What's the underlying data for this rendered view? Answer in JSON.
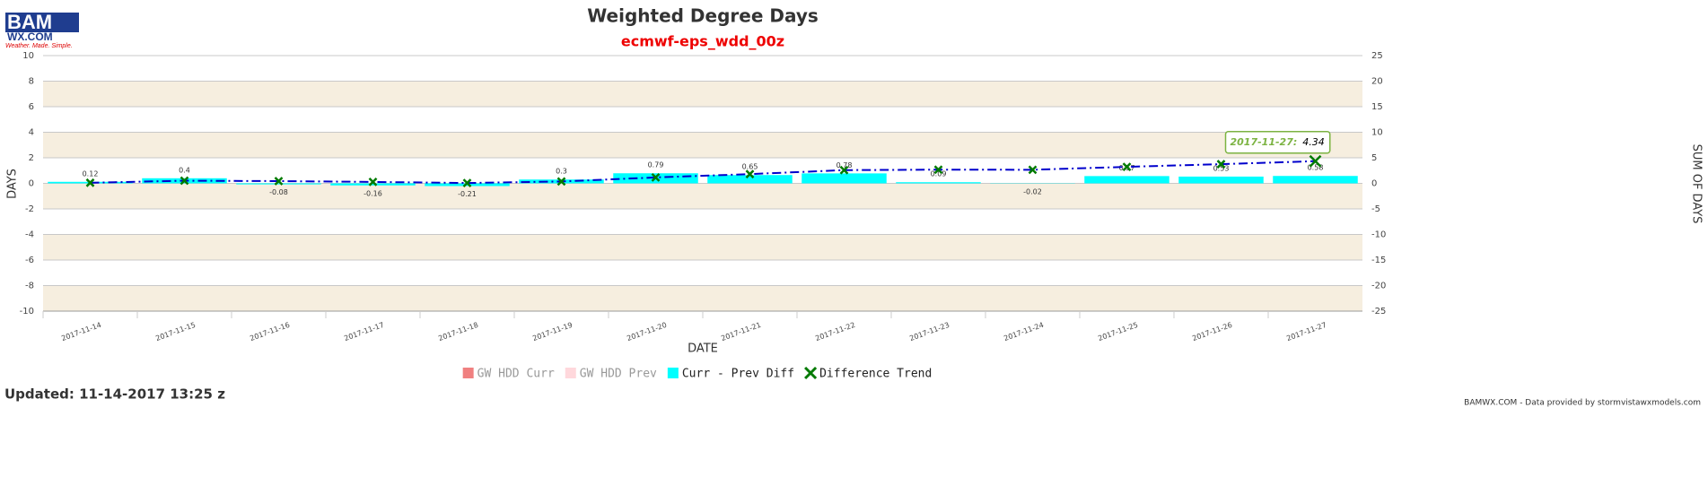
{
  "logo": {
    "name": "BAM",
    "site": "WX.COM",
    "slogan": "Weather. Made. Simple."
  },
  "updated": "Updated: 11-14-2017 13:25 z",
  "credits": "BAMWX.COM - Data provided by stormvistawxmodels.com",
  "chart_data": {
    "type": "bar",
    "title": "Weighted Degree Days",
    "subtitle": "ecmwf-eps_wdd_00z",
    "xlabel": "DATE",
    "ylabel": "DAYS",
    "y2label": "SUM OF DAYS",
    "categories": [
      "2017-11-14",
      "2017-11-15",
      "2017-11-16",
      "2017-11-17",
      "2017-11-18",
      "2017-11-19",
      "2017-11-20",
      "2017-11-21",
      "2017-11-22",
      "2017-11-23",
      "2017-11-24",
      "2017-11-25",
      "2017-11-26",
      "2017-11-27"
    ],
    "series": [
      {
        "name": "GW HDD Curr",
        "color": "#f08080",
        "visible": false
      },
      {
        "name": "GW HDD Prev",
        "color": "#ffd8dc",
        "visible": false
      },
      {
        "name": "Curr - Prev Diff",
        "color": "#00ffff",
        "type": "bar",
        "values": [
          0.12,
          0.4,
          -0.08,
          -0.16,
          -0.21,
          0.3,
          0.79,
          0.65,
          0.78,
          0.09,
          -0.02,
          0.57,
          0.53,
          0.58
        ]
      },
      {
        "name": "Difference Trend",
        "color": "#0000cc",
        "marker_color": "#007a00",
        "type": "line",
        "axis": "y2",
        "values": [
          0.12,
          0.52,
          0.44,
          0.28,
          0.07,
          0.37,
          1.16,
          1.81,
          2.59,
          2.68,
          2.66,
          3.23,
          3.76,
          4.34
        ]
      }
    ],
    "ylim": [
      -10,
      10
    ],
    "yticks": [
      -10,
      -8,
      -6,
      -4,
      -2,
      0,
      2,
      4,
      6,
      8,
      10
    ],
    "y2lim": [
      -25,
      25
    ],
    "y2ticks": [
      -25,
      -20,
      -15,
      -10,
      -5,
      0,
      5,
      10,
      15,
      20,
      25
    ],
    "grid": true,
    "tooltip": {
      "label": "2017-11-27:",
      "value": 4.34
    }
  }
}
